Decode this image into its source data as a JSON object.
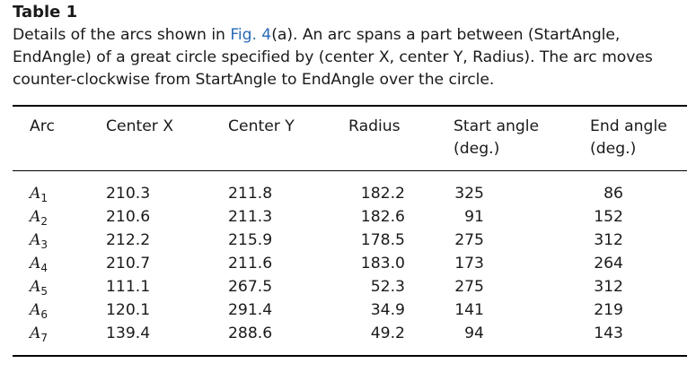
{
  "table": {
    "label": "Table 1",
    "caption_lines": [
      [
        "Details of the arcs shown in ",
        "Fig. 4",
        "(a). An arc spans a part between (StartAngle,"
      ],
      [
        "EndAngle) of a great circle specified by (center X, center Y, Radius). The arc moves"
      ],
      [
        "counter-clockwise from StartAngle to EndAngle over the circle."
      ]
    ],
    "headers": {
      "arc": "Arc",
      "center_x": "Center X",
      "center_y": "Center Y",
      "radius": "Radius",
      "start_angle": [
        "Start angle",
        "(deg.)"
      ],
      "end_angle": [
        "End angle",
        "(deg.)"
      ]
    },
    "rows": [
      {
        "arc": "A",
        "sub": "1",
        "center_x": "210.3",
        "center_y": "211.8",
        "radius": "182.2",
        "start": "325",
        "end": "86"
      },
      {
        "arc": "A",
        "sub": "2",
        "center_x": "210.6",
        "center_y": "211.3",
        "radius": "182.6",
        "start": "91",
        "end": "152"
      },
      {
        "arc": "A",
        "sub": "3",
        "center_x": "212.2",
        "center_y": "215.9",
        "radius": "178.5",
        "start": "275",
        "end": "312"
      },
      {
        "arc": "A",
        "sub": "4",
        "center_x": "210.7",
        "center_y": "211.6",
        "radius": "183.0",
        "start": "173",
        "end": "264"
      },
      {
        "arc": "A",
        "sub": "5",
        "center_x": "111.1",
        "center_y": "267.5",
        "radius": "52.3",
        "start": "275",
        "end": "312"
      },
      {
        "arc": "A",
        "sub": "6",
        "center_x": "120.1",
        "center_y": "291.4",
        "radius": "34.9",
        "start": "141",
        "end": "219"
      },
      {
        "arc": "A",
        "sub": "7",
        "center_x": "139.4",
        "center_y": "288.6",
        "radius": "49.2",
        "start": "94",
        "end": "143"
      }
    ],
    "colors": {
      "link": "#2a6bb5",
      "text": "#1a1a1a",
      "rule": "#000000"
    }
  }
}
